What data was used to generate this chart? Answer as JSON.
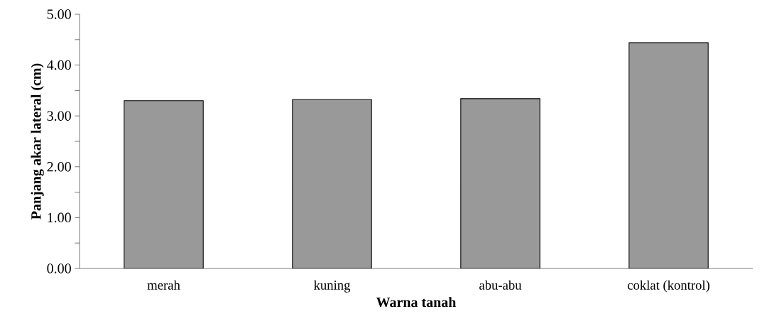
{
  "chart_data": {
    "type": "bar",
    "xlabel": "Warna  tanah",
    "ylabel": "Panjang akar lateral (cm)",
    "categories": [
      "merah",
      "kuning",
      "abu-abu",
      "coklat (kontrol)"
    ],
    "values": [
      3.3,
      3.32,
      3.34,
      4.44
    ],
    "color": "#999999",
    "ylim": [
      0,
      5
    ],
    "yticks": [
      {
        "value": 0,
        "label": "0.00"
      },
      {
        "value": 0.5,
        "label": null
      },
      {
        "value": 1,
        "label": "1.00"
      },
      {
        "value": 1.5,
        "label": null
      },
      {
        "value": 2,
        "label": "2.00"
      },
      {
        "value": 2.5,
        "label": null
      },
      {
        "value": 3,
        "label": "3.00"
      },
      {
        "value": 3.5,
        "label": null
      },
      {
        "value": 4,
        "label": "4.00"
      },
      {
        "value": 4.5,
        "label": null
      },
      {
        "value": 5,
        "label": "5.00"
      }
    ],
    "grid": false
  }
}
